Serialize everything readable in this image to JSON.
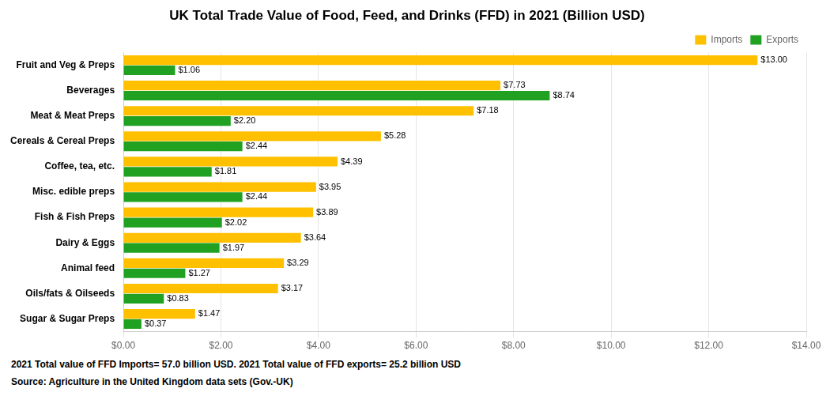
{
  "chart_data": {
    "type": "bar",
    "orientation": "horizontal",
    "title": "UK Total Trade Value of Food, Feed, and Drinks (FFD) in 2021 (Billion USD)",
    "categories": [
      "Fruit and Veg & Preps",
      "Beverages",
      "Meat & Meat Preps",
      "Cereals & Cereal Preps",
      "Coffee, tea, etc.",
      "Misc. edible preps",
      "Fish & Fish Preps",
      "Dairy & Eggs",
      "Animal feed",
      "Oils/fats & Oilseeds",
      "Sugar & Sugar Preps"
    ],
    "series": [
      {
        "name": "Imports",
        "color": "#FFC000",
        "values": [
          13.0,
          7.73,
          7.18,
          5.28,
          4.39,
          3.95,
          3.89,
          3.64,
          3.29,
          3.17,
          1.47
        ],
        "value_labels": [
          "$13.00",
          "$7.73",
          "$7.18",
          "$5.28",
          "$4.39",
          "$3.95",
          "$3.89",
          "$3.64",
          "$3.29",
          "$3.17",
          "$1.47"
        ]
      },
      {
        "name": "Exports",
        "color": "#21A121",
        "values": [
          1.06,
          8.74,
          2.2,
          2.44,
          1.81,
          2.44,
          2.02,
          1.97,
          1.27,
          0.83,
          0.37
        ],
        "value_labels": [
          "$1.06",
          "$8.74",
          "$2.20",
          "$2.44",
          "$1.81",
          "$2.44",
          "$2.02",
          "$1.97",
          "$1.27",
          "$0.83",
          "$0.37"
        ]
      }
    ],
    "xlim": [
      0,
      14
    ],
    "xticks": [
      {
        "value": 0,
        "label": "$0.00"
      },
      {
        "value": 2,
        "label": "$2.00"
      },
      {
        "value": 4,
        "label": "$4.00"
      },
      {
        "value": 6,
        "label": "$6.00"
      },
      {
        "value": 8,
        "label": "$8.00"
      },
      {
        "value": 10,
        "label": "$10.00"
      },
      {
        "value": 12,
        "label": "$12.00"
      },
      {
        "value": 14,
        "label": "$14.00"
      }
    ],
    "grid": true,
    "legend": "upper right",
    "data_labels": true,
    "annotations": [
      "2021 Total value of FFD Imports= 57.0 billion USD. 2021 Total value of FFD exports= 25.2 billion USD",
      "Source: Agriculture in the United Kingdom data sets (Gov.-UK)"
    ]
  }
}
